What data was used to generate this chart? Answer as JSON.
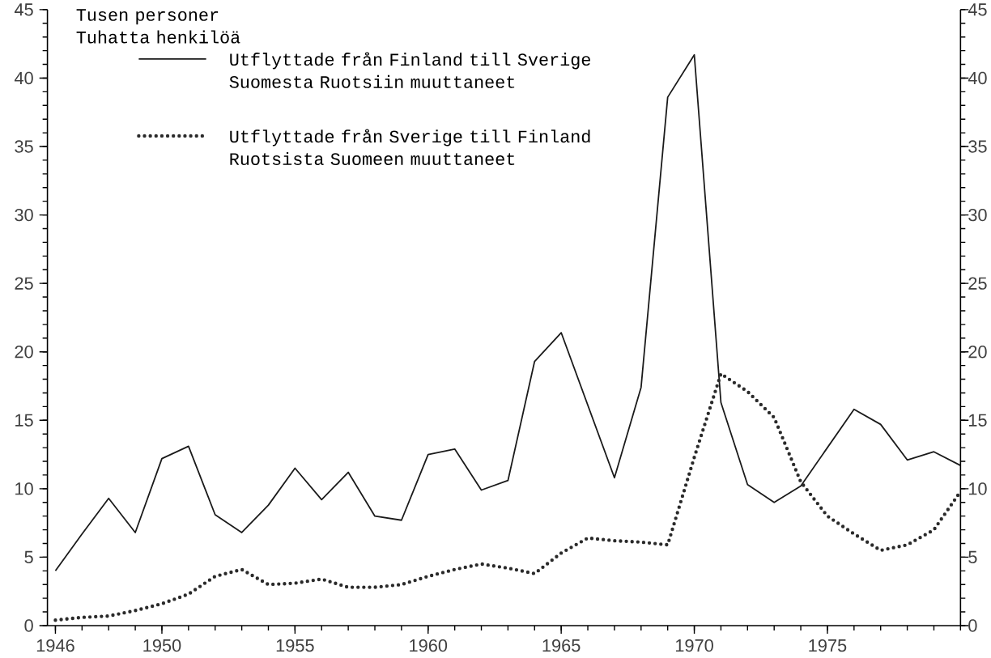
{
  "chart_data": {
    "type": "line",
    "ylabel": "Tusen personer Tuhatta henkilöä",
    "x": [
      1946,
      1947,
      1948,
      1949,
      1950,
      1951,
      1952,
      1953,
      1954,
      1955,
      1956,
      1957,
      1958,
      1959,
      1960,
      1961,
      1962,
      1963,
      1964,
      1965,
      1966,
      1967,
      1968,
      1969,
      1970,
      1971,
      1972,
      1973,
      1974,
      1975,
      1976,
      1977,
      1978,
      1979,
      1980
    ],
    "series": [
      {
        "name": "Utflyttade från Finland till Sverige Suomesta Ruotsiin muuttaneet",
        "color": "#1a1a1a",
        "line_style": "solid",
        "values": [
          4.0,
          6.7,
          9.3,
          6.8,
          12.2,
          13.1,
          8.1,
          6.8,
          8.8,
          11.5,
          9.2,
          11.2,
          8.0,
          7.7,
          12.5,
          12.9,
          9.9,
          10.6,
          19.3,
          21.4,
          16.1,
          10.8,
          17.4,
          38.6,
          41.7,
          16.3,
          10.3,
          9.0,
          10.2,
          13.0,
          15.8,
          14.7,
          12.1,
          12.7,
          11.7
        ]
      },
      {
        "name": "Utflyttade från Sverige till Finland Ruotsista Suomeen muuttaneet",
        "color": "#2a2a2a",
        "line_style": "dotted",
        "values": [
          0.4,
          0.6,
          0.7,
          1.1,
          1.6,
          2.3,
          3.6,
          4.1,
          3.0,
          3.1,
          3.4,
          2.8,
          2.8,
          3.0,
          3.6,
          4.1,
          4.5,
          4.2,
          3.8,
          5.3,
          6.4,
          6.2,
          6.1,
          5.9,
          12.3,
          18.4,
          17.1,
          15.2,
          10.5,
          8.0,
          6.7,
          5.5,
          5.9,
          7.0,
          9.8
        ]
      }
    ],
    "xlim": [
      1945.7,
      1980
    ],
    "xticks": [
      1946,
      1950,
      1955,
      1960,
      1965,
      1970,
      1975
    ],
    "ylim": [
      0,
      45
    ],
    "yticks": [
      0,
      5,
      10,
      15,
      20,
      25,
      30,
      35,
      40,
      45
    ],
    "y2lim": [
      0,
      45
    ],
    "y2ticks": [
      0,
      5,
      10,
      15,
      20,
      25,
      30,
      35,
      40,
      45
    ],
    "marker": "none",
    "legend": "top left"
  }
}
